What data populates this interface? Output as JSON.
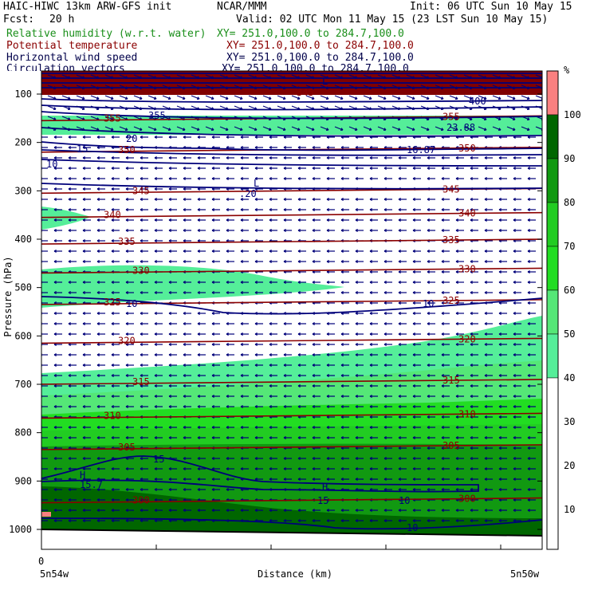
{
  "header": {
    "title_left": "HAIC-HIWC 13km ARW-GFS init",
    "title_mid": "NCAR/MMM",
    "init": "Init: 06 UTC Sun 10 May 15",
    "fcst_label": "Fcst:",
    "fcst_value": "20 h",
    "valid": "Valid: 02 UTC Mon 11 May 15 (23 LST Sun 10 May 15)",
    "fields": [
      {
        "name": "Relative humidity (w.r.t. water)",
        "xy": "XY= 251.0,100.0 to 284.7,100.0",
        "color": "#1a8f1a"
      },
      {
        "name": "Potential temperature",
        "xy": "XY= 251.0,100.0 to 284.7,100.0",
        "color": "#8b0000"
      },
      {
        "name": "Horizontal wind speed",
        "xy": "XY= 251.0,100.0 to 284.7,100.0",
        "color": "#00004a"
      },
      {
        "name": "Circulation vectors",
        "xy": "XY= 251.0,100.0 to 284.7,100.0",
        "color": "#00004a"
      }
    ]
  },
  "colors": {
    "rh_50": "#55ee99",
    "rh_60": "#55e777",
    "rh_70": "#22dd22",
    "rh_80": "#22cc22",
    "rh_90": "#119911",
    "rh_100": "#006600",
    "rh_high": "#fa8080",
    "theta": "#8b0000",
    "wind": "#00007a",
    "top_band": "#800000"
  },
  "chart_data": {
    "type": "heatmap",
    "ylabel": "Pressure (hPa)",
    "xlabel": "Distance (km)",
    "y_ticks": [
      100,
      200,
      300,
      400,
      500,
      600,
      700,
      800,
      900,
      1000
    ],
    "x_ticks": [
      "0"
    ],
    "x_left_label": "5n54w",
    "x_right_label": "5n50w",
    "ylim": [
      1000,
      100
    ],
    "colorbar": {
      "unit": "%",
      "labels": [
        100,
        90,
        80,
        70,
        60,
        50,
        40,
        30,
        20,
        10
      ],
      "levels": [
        {
          "min": 100,
          "max": 110,
          "color": "#fa8080"
        },
        {
          "min": 90,
          "max": 100,
          "color": "#006600"
        },
        {
          "min": 80,
          "max": 90,
          "color": "#119911"
        },
        {
          "min": 70,
          "max": 80,
          "color": "#22cc22"
        },
        {
          "min": 60,
          "max": 70,
          "color": "#22dd22"
        },
        {
          "min": 50,
          "max": 60,
          "color": "#55e777"
        },
        {
          "min": 40,
          "max": 50,
          "color": "#55ee99"
        },
        {
          "min": 0,
          "max": 40,
          "color": "#ffffff"
        }
      ]
    },
    "theta_contours": [
      {
        "label": "355",
        "p": 150
      },
      {
        "label": "350",
        "p": 215
      },
      {
        "label": "345",
        "p": 300
      },
      {
        "label": "340",
        "p": 350
      },
      {
        "label": "335",
        "p": 405
      },
      {
        "label": "330",
        "p": 465
      },
      {
        "label": "325",
        "p": 530
      },
      {
        "label": "320",
        "p": 610
      },
      {
        "label": "315",
        "p": 695
      },
      {
        "label": "310",
        "p": 765
      },
      {
        "label": "305",
        "p": 830
      },
      {
        "label": "300",
        "p": 940
      }
    ],
    "theta_label_top": "345",
    "wind_labels": [
      "400",
      "355",
      "23.88",
      "20",
      "15",
      "10",
      ".20",
      "10",
      "10",
      "15",
      "16.87",
      "15.7",
      "15",
      "10",
      "10"
    ],
    "h_labels": [
      "H",
      "H"
    ],
    "l_labels": [
      "L",
      "L"
    ]
  }
}
